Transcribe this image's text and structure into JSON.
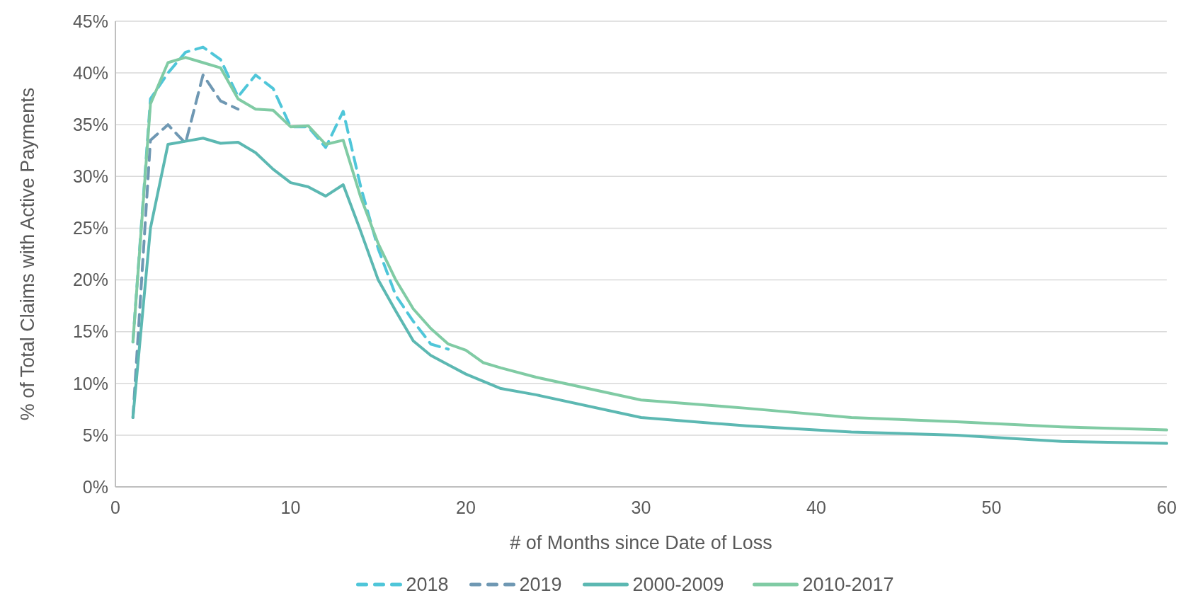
{
  "chart_data": {
    "type": "line",
    "xlabel": "# of Months since Date of Loss",
    "ylabel": "% of Total Claims with Active Payments",
    "xlim": [
      0,
      60
    ],
    "xticks": [
      0,
      10,
      20,
      30,
      40,
      50,
      60
    ],
    "ylim": [
      0,
      45
    ],
    "yticks": [
      {
        "value": 0,
        "label": "0%"
      },
      {
        "value": 5,
        "label": "5%"
      },
      {
        "value": 10,
        "label": "10%"
      },
      {
        "value": 15,
        "label": "15%"
      },
      {
        "value": 20,
        "label": "20%"
      },
      {
        "value": 25,
        "label": "25%"
      },
      {
        "value": 30,
        "label": "30%"
      },
      {
        "value": 35,
        "label": "35%"
      },
      {
        "value": 40,
        "label": "40%"
      },
      {
        "value": 45,
        "label": "45%"
      }
    ],
    "grid": "y",
    "legend": "bottom",
    "series": [
      {
        "name": "2018",
        "color": "#4fc6d9",
        "line_style": "dashed",
        "x": [
          1,
          2,
          3,
          4,
          5,
          6,
          7,
          8,
          9,
          10,
          11,
          12,
          13,
          14,
          15,
          16,
          17,
          18,
          19
        ],
        "values": [
          14,
          37.5,
          40,
          42,
          42.5,
          41.3,
          37.7,
          39.8,
          38.5,
          34.8,
          34.8,
          32.8,
          36.3,
          29,
          23,
          18.5,
          16,
          13.8,
          13.3
        ]
      },
      {
        "name": "2019",
        "color": "#6f98b3",
        "line_style": "dashed",
        "x": [
          1,
          2,
          3,
          4,
          5,
          6,
          7
        ],
        "values": [
          6.7,
          33.5,
          35,
          33.2,
          39.8,
          37.3,
          36.5
        ]
      },
      {
        "name": "2000-2009",
        "color": "#5cb8b2",
        "line_style": "solid",
        "x": [
          1,
          2,
          3,
          4,
          5,
          6,
          7,
          8,
          9,
          10,
          11,
          12,
          13,
          14,
          15,
          16,
          17,
          18,
          19,
          20,
          21,
          22,
          24,
          30,
          36,
          42,
          48,
          54,
          60
        ],
        "values": [
          6.7,
          25,
          33.1,
          33.4,
          33.7,
          33.2,
          33.3,
          32.3,
          30.7,
          29.4,
          29,
          28.1,
          29.2,
          24.7,
          20,
          17,
          14.1,
          12.7,
          11.8,
          10.9,
          10.2,
          9.5,
          8.9,
          6.7,
          5.9,
          5.3,
          5,
          4.4,
          4.2
        ]
      },
      {
        "name": "2010-2017",
        "color": "#80cba4",
        "line_style": "solid",
        "x": [
          1,
          2,
          3,
          4,
          5,
          6,
          7,
          8,
          9,
          10,
          11,
          12,
          13,
          14,
          15,
          16,
          17,
          18,
          19,
          20,
          21,
          22,
          24,
          30,
          36,
          42,
          48,
          54,
          60
        ],
        "values": [
          14,
          37,
          41,
          41.5,
          41,
          40.5,
          37.5,
          36.5,
          36.4,
          34.8,
          34.9,
          33.1,
          33.5,
          28,
          23.5,
          20,
          17.2,
          15.3,
          13.8,
          13.2,
          12,
          11.5,
          10.6,
          8.4,
          7.6,
          6.7,
          6.3,
          5.8,
          5.5
        ]
      }
    ]
  }
}
